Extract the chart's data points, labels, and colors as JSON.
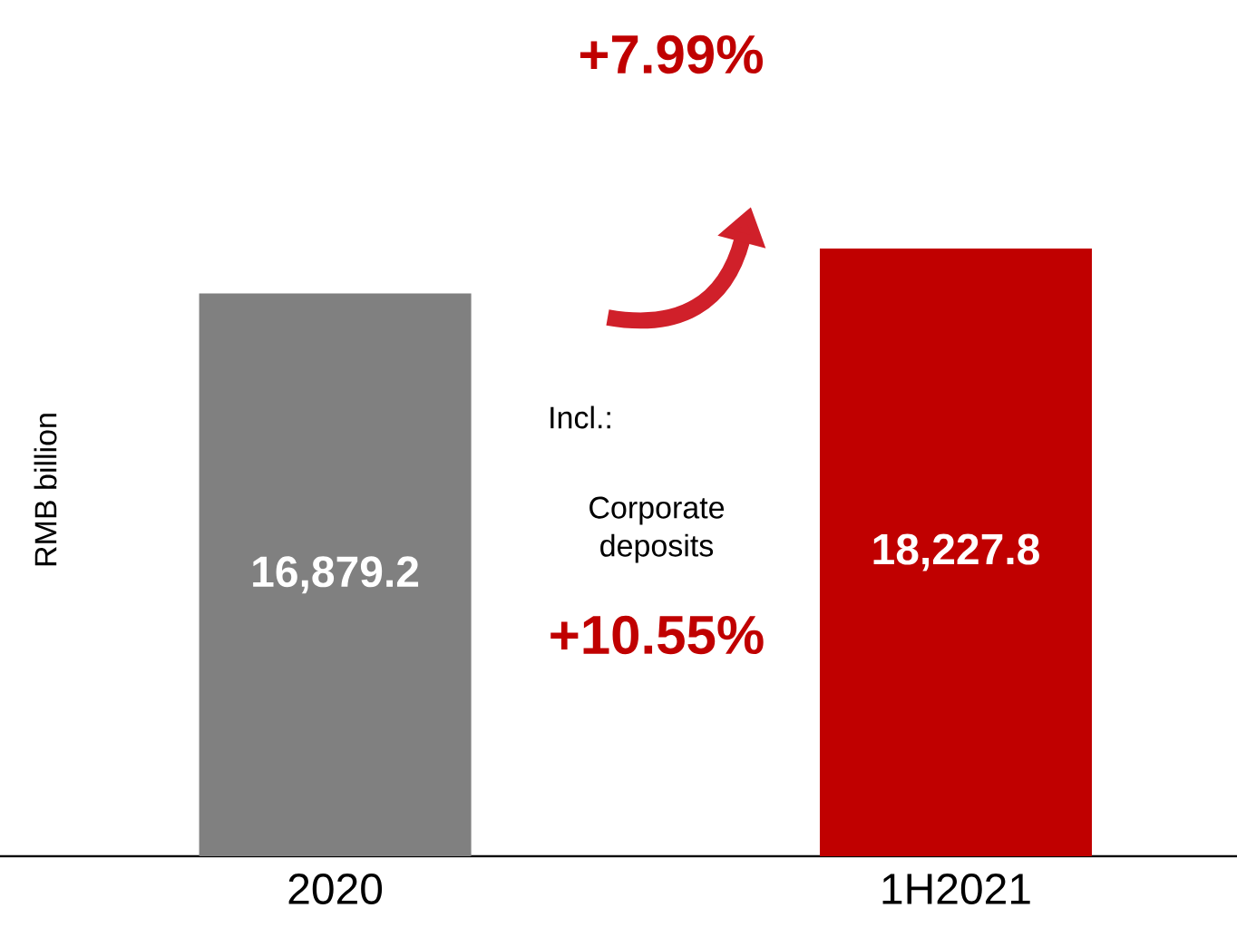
{
  "chart_data": {
    "type": "bar",
    "ylabel": "RMB billion",
    "categories": [
      "2020",
      "1H2021"
    ],
    "values": [
      16879.2,
      18227.8
    ],
    "colors": [
      "#808080",
      "#c00000"
    ],
    "value_labels": [
      "16,879.2",
      "18,227.8"
    ],
    "annotations": [
      "+7.99%",
      "Incl.:",
      "Corporate deposits",
      "+10.55%"
    ]
  }
}
